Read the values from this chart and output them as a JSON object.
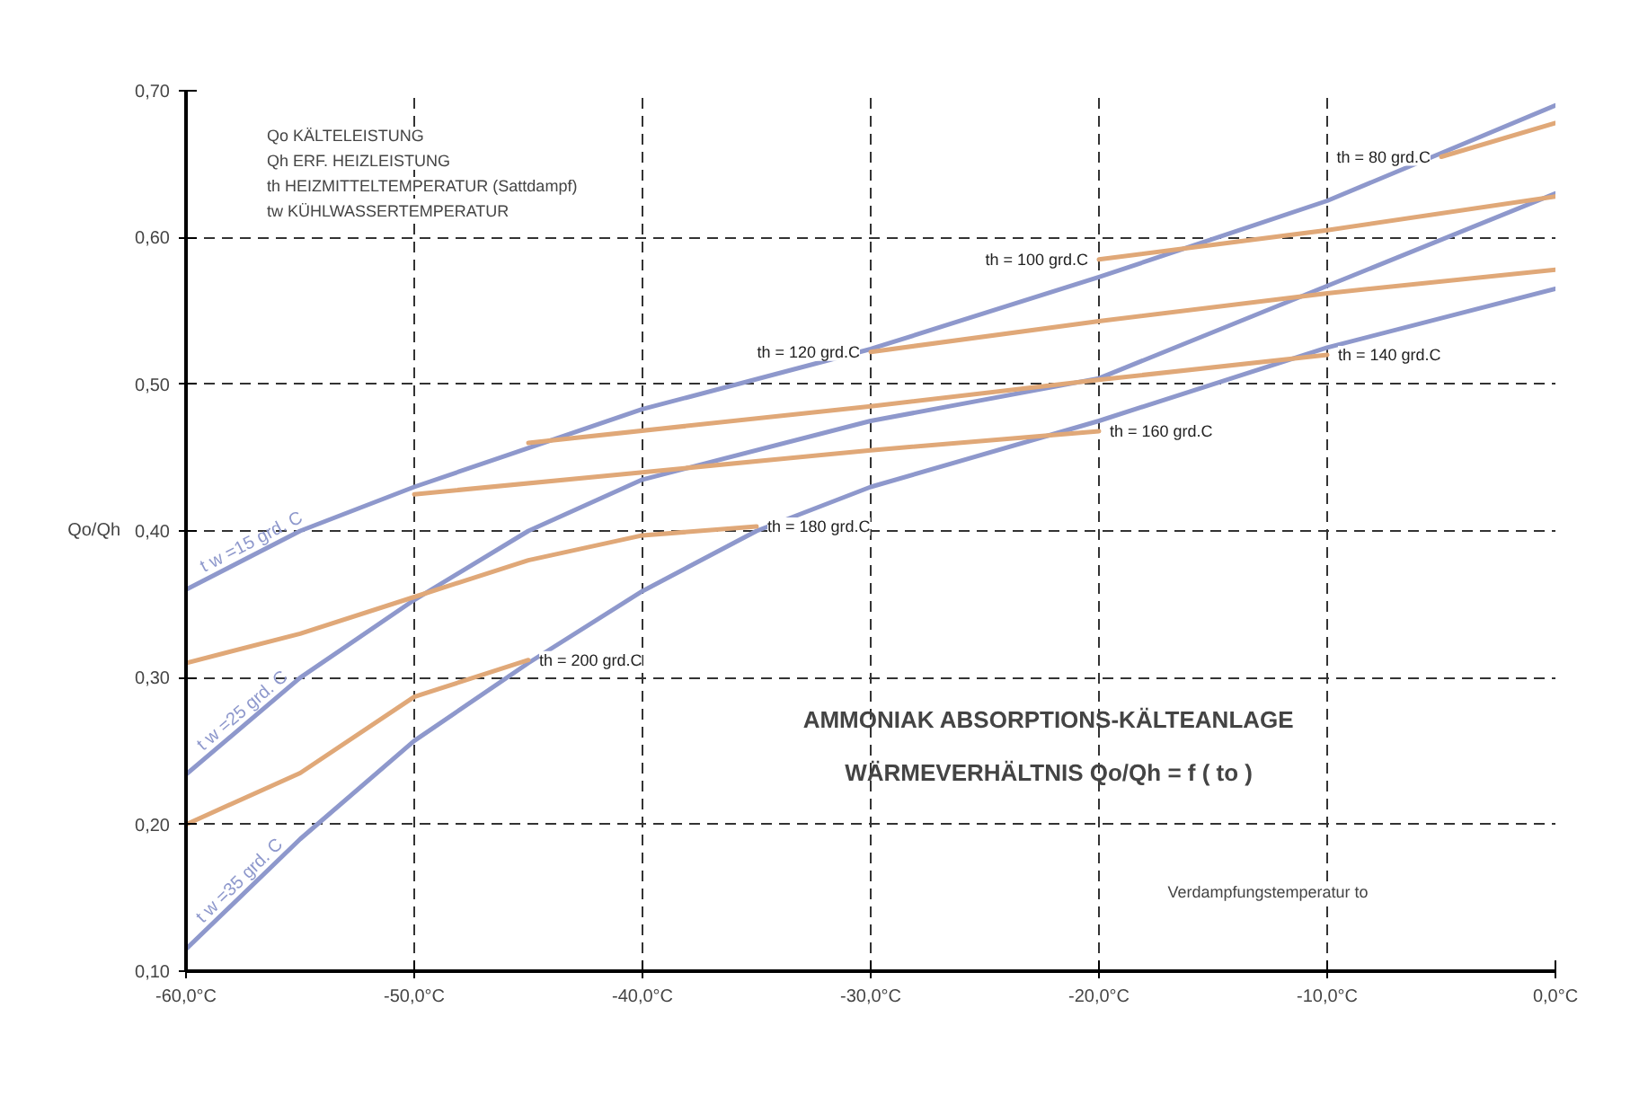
{
  "chart_data": {
    "type": "line",
    "title": "AMMONIAK ABSORPTIONS-KÄLTEANLAGE",
    "subtitle": "WÄRMEVERHÄLTNIS Qo/Qh = f ( to )",
    "xlabel": "Verdampfungstemperatur to",
    "ylabel": "Qo/Qh",
    "annotations": [
      "Qo  KÄLTELEISTUNG",
      "Qh  ERF. HEIZLEISTUNG",
      "th   HEIZMITTELTEMPERATUR (Sattdampf)",
      "tw    KÜHLWASSERTEMPERATUR"
    ],
    "xlim": [
      -60,
      0
    ],
    "ylim": [
      0.1,
      0.7
    ],
    "xticks": [
      {
        "value": -60,
        "label": "-60,0°C"
      },
      {
        "value": -50,
        "label": "-50,0°C"
      },
      {
        "value": -40,
        "label": "-40,0°C"
      },
      {
        "value": -30,
        "label": "-30,0°C"
      },
      {
        "value": -20,
        "label": "-20,0°C"
      },
      {
        "value": -10,
        "label": "-10,0°C"
      },
      {
        "value": 0,
        "label": "0,0°C"
      }
    ],
    "yticks": [
      {
        "value": 0.1,
        "label": "0,10"
      },
      {
        "value": 0.2,
        "label": "0,20"
      },
      {
        "value": 0.3,
        "label": "0,30"
      },
      {
        "value": 0.4,
        "label": "0,40"
      },
      {
        "value": 0.5,
        "label": "0,50"
      },
      {
        "value": 0.6,
        "label": "0,60"
      },
      {
        "value": 0.7,
        "label": "0,70"
      }
    ],
    "grid": true,
    "line_style": "solid",
    "series": [
      {
        "name": "t w =15 grd. C",
        "color": "#8e98cc",
        "x": [
          -60,
          -55,
          -50,
          -40,
          -30,
          -20,
          -10,
          0
        ],
        "values": [
          0.36,
          0.4,
          0.43,
          0.483,
          0.524,
          0.573,
          0.625,
          0.69
        ]
      },
      {
        "name": "t w =25 grd. C",
        "color": "#8e98cc",
        "x": [
          -60,
          -55,
          -50,
          -45,
          -40,
          -30,
          -20,
          -10,
          0
        ],
        "values": [
          0.234,
          0.3,
          0.353,
          0.4,
          0.435,
          0.475,
          0.504,
          0.567,
          0.63
        ]
      },
      {
        "name": "t w =35 grd. C",
        "color": "#8e98cc",
        "x": [
          -60,
          -55,
          -50,
          -45,
          -40,
          -35,
          -30,
          -20,
          -10,
          0
        ],
        "values": [
          0.115,
          0.19,
          0.257,
          0.31,
          0.359,
          0.4,
          0.43,
          0.475,
          0.525,
          0.565
        ]
      },
      {
        "name": "th = 80 grd.C",
        "color": "#e0a878",
        "x": [
          -5,
          0
        ],
        "values": [
          0.655,
          0.678
        ]
      },
      {
        "name": "th = 100 grd.C",
        "color": "#e0a878",
        "x": [
          -20,
          -10,
          0
        ],
        "values": [
          0.585,
          0.605,
          0.628
        ]
      },
      {
        "name": "th = 120 grd.C",
        "color": "#e0a878",
        "x": [
          -30,
          -20,
          -10,
          0
        ],
        "values": [
          0.522,
          0.543,
          0.562,
          0.578
        ]
      },
      {
        "name": "th = 140 grd.C",
        "color": "#e0a878",
        "x": [
          -45,
          -30,
          -20,
          -10
        ],
        "values": [
          0.46,
          0.485,
          0.503,
          0.52
        ]
      },
      {
        "name": "th = 160 grd.C",
        "color": "#e0a878",
        "x": [
          -50,
          -40,
          -30,
          -20
        ],
        "values": [
          0.425,
          0.44,
          0.455,
          0.468
        ]
      },
      {
        "name": "th = 180 grd.C",
        "color": "#e0a878",
        "x": [
          -60,
          -55,
          -50,
          -45,
          -40,
          -35
        ],
        "values": [
          0.31,
          0.33,
          0.355,
          0.38,
          0.397,
          0.403
        ]
      },
      {
        "name": "th = 200 grd.C",
        "color": "#e0a878",
        "x": [
          -60,
          -55,
          -50,
          -45
        ],
        "values": [
          0.2,
          0.235,
          0.287,
          0.312
        ]
      }
    ]
  }
}
